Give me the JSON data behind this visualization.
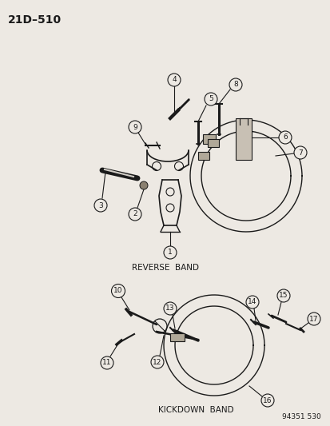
{
  "title": "21D–510",
  "reverse_band_label": "REVERSE  BAND",
  "kickdown_band_label": "KICKDOWN  BAND",
  "part_number": "94351 530",
  "bg_color": "#ede9e3",
  "line_color": "#1a1a1a",
  "circle_bg": "#ede9e3"
}
